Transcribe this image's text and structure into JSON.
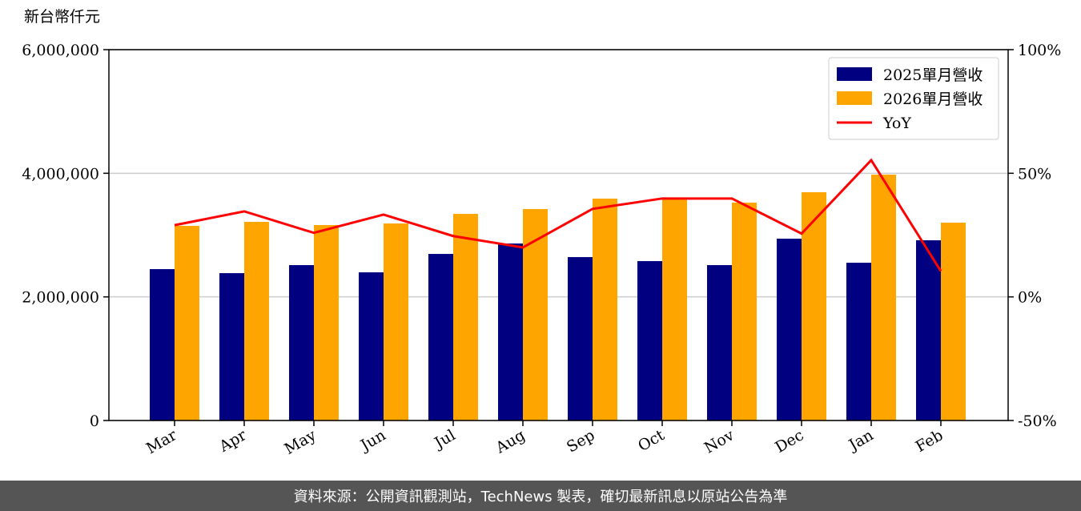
{
  "chart_data": {
    "type": "bar",
    "unit_label": "新台幣仟元",
    "categories": [
      "Mar",
      "Apr",
      "May",
      "Jun",
      "Jul",
      "Aug",
      "Sep",
      "Oct",
      "Nov",
      "Dec",
      "Jan",
      "Feb"
    ],
    "series": [
      {
        "name": "2025單月營收",
        "color": "#000080",
        "values": [
          2449000,
          2384000,
          2514000,
          2397000,
          2695000,
          2864000,
          2644000,
          2579000,
          2514000,
          2942000,
          2553000,
          2916000
        ]
      },
      {
        "name": "2026單月營收",
        "color": "#ffa500",
        "values": [
          3149000,
          3214000,
          3162000,
          3188000,
          3343000,
          3421000,
          3590000,
          3590000,
          3525000,
          3693000,
          3978000,
          3201000
        ]
      },
      {
        "name": "YoY",
        "color": "#ff0000",
        "type": "line",
        "axis": "y2",
        "values": [
          29,
          34.6,
          25.9,
          33.3,
          24.6,
          20,
          35.6,
          39.8,
          39.8,
          25.6,
          55.3,
          10.4
        ]
      }
    ],
    "ylim": [
      0,
      6000000
    ],
    "yticks": [
      0,
      {
        "value": 2000000,
        "label": "2,000,000"
      },
      {
        "value": 4000000,
        "label": "4,000,000"
      },
      {
        "value": 6000000,
        "label": "6,000,000"
      }
    ],
    "y2lim": [
      -50,
      100
    ],
    "y2ticks": [
      {
        "value": -50,
        "label": "-50%"
      },
      {
        "value": 0,
        "label": "0%"
      },
      {
        "value": 50,
        "label": "50%"
      },
      {
        "value": 100,
        "label": "100%"
      }
    ],
    "grid": true,
    "legend": "upper right"
  },
  "footer": "資料來源：公開資訊觀測站，TechNews 製表，確切最新訊息以原站公告為準"
}
